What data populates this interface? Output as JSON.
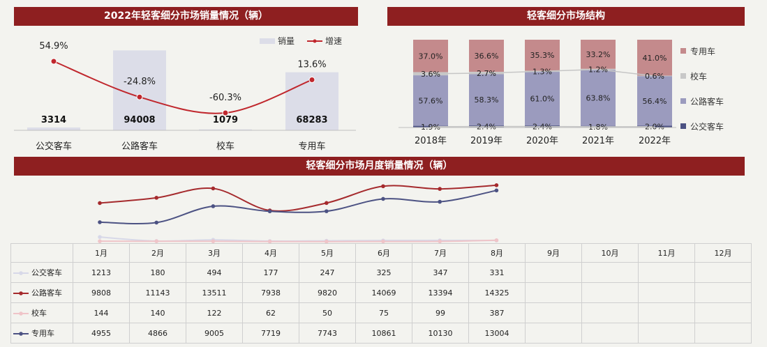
{
  "panels": {
    "left_title": "2022年轻客细分市场销量情况（辆）",
    "right_title": "轻客细分市场结构",
    "bottom_title": "轻客细分市场月度销量情况（辆）"
  },
  "colors": {
    "banner": "#8e1f20",
    "bar": "#dcdde8",
    "growth_line": "#c0272d",
    "bus": "#4c5283",
    "road": "#9b9bbe",
    "school": "#c8c8c8",
    "special": "#c48a8c",
    "monthly_bus": "#d7d8e8",
    "monthly_road": "#a52a2d",
    "monthly_school": "#efc4c8",
    "monthly_special": "#4c5283"
  },
  "chart_data": [
    {
      "type": "bar",
      "title": "2022年轻客细分市场销量情况（辆）",
      "categories": [
        "公交客车",
        "公路客车",
        "校车",
        "专用车"
      ],
      "series": [
        {
          "name": "销量",
          "values": [
            3314,
            94008,
            1079,
            68283
          ]
        },
        {
          "name": "增速",
          "values": [
            54.9,
            -24.8,
            -60.3,
            13.6
          ],
          "labels": [
            "54.9%",
            "-24.8%",
            "-60.3%",
            "13.6%"
          ]
        }
      ],
      "legend": "top-right"
    },
    {
      "type": "bar",
      "stacked": true,
      "title": "轻客细分市场结构",
      "categories": [
        "2018年",
        "2019年",
        "2020年",
        "2021年",
        "2022年"
      ],
      "series": [
        {
          "name": "专用车",
          "values": [
            37.0,
            36.6,
            35.3,
            33.2,
            41.0
          ],
          "labels": [
            "37.0%",
            "36.6%",
            "35.3%",
            "33.2%",
            "41.0%"
          ]
        },
        {
          "name": "校车",
          "values": [
            3.6,
            2.7,
            1.3,
            1.2,
            0.6
          ],
          "labels": [
            "3.6%",
            "2.7%",
            "1.3%",
            "1.2%",
            "0.6%"
          ]
        },
        {
          "name": "公路客车",
          "values": [
            57.6,
            58.3,
            61.0,
            63.8,
            56.4
          ],
          "labels": [
            "57.6%",
            "58.3%",
            "61.0%",
            "63.8%",
            "56.4%"
          ]
        },
        {
          "name": "公交客车",
          "values": [
            1.9,
            2.4,
            2.4,
            1.8,
            2.0
          ],
          "labels": [
            "1.9%",
            "2.4%",
            "2.4%",
            "1.8%",
            "2.0%"
          ]
        }
      ],
      "legend": "right"
    },
    {
      "type": "line",
      "title": "轻客细分市场月度销量情况（辆）",
      "categories": [
        "1月",
        "2月",
        "3月",
        "4月",
        "5月",
        "6月",
        "7月",
        "8月",
        "9月",
        "10月",
        "11月",
        "12月"
      ],
      "series": [
        {
          "name": "公交客车",
          "values": [
            "1213",
            "180",
            "494",
            "177",
            "247",
            "325",
            "347",
            "331",
            "",
            "",
            "",
            ""
          ]
        },
        {
          "name": "公路客车",
          "values": [
            "9808",
            "11143",
            "13511",
            "7938",
            "9820",
            "14069",
            "13394",
            "14325",
            "",
            "",
            "",
            ""
          ]
        },
        {
          "name": "校车",
          "values": [
            "144",
            "140",
            "122",
            "62",
            "50",
            "75",
            "99",
            "387",
            "",
            "",
            "",
            ""
          ]
        },
        {
          "name": "专用车",
          "values": [
            "4955",
            "4866",
            "9005",
            "7719",
            "7743",
            "10861",
            "10130",
            "13004",
            "",
            "",
            "",
            ""
          ]
        }
      ],
      "legend": "table"
    }
  ]
}
